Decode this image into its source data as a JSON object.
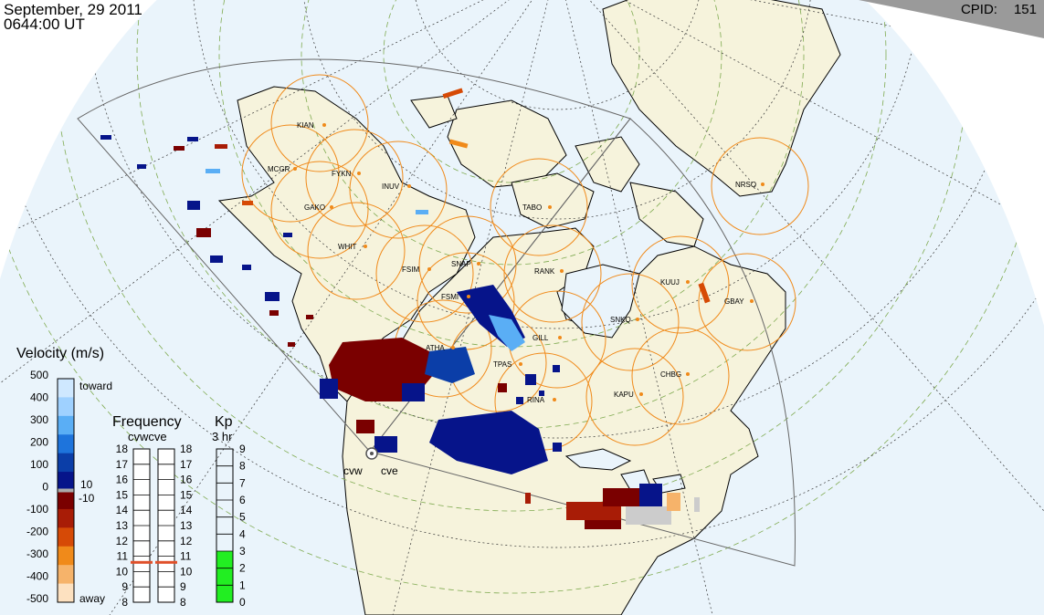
{
  "header": {
    "date": "September, 29 2011",
    "time": "0644:00 UT",
    "cpid_label": "CPID:",
    "cpid_value": "151"
  },
  "radar_sites": [
    "KIAN",
    "MCGR",
    "FYKN",
    "INUV",
    "GAKO",
    "WHIT",
    "TABO",
    "NRSQ",
    "FSIM",
    "SNAP",
    "RANK",
    "FSMI",
    "KUUJ",
    "GBAY",
    "SNKQ",
    "GILL",
    "ATHA",
    "TPAS",
    "CHBG",
    "KAPU",
    "RINA"
  ],
  "active_radars": {
    "west": "cvw",
    "east": "cve"
  },
  "velocity_scale": {
    "title": "Velocity (m/s)",
    "ticks": [
      "500",
      "400",
      "300",
      "200",
      "100",
      "0",
      "-100",
      "-200",
      "-300",
      "-400",
      "-500"
    ],
    "toward_label": "toward",
    "away_label": "away",
    "pos_threshold": "10",
    "neg_threshold": "-10",
    "colors": [
      "#cfe8ff",
      "#9fd1ff",
      "#5aaef5",
      "#1e74dc",
      "#0b3ea8",
      "#06148a",
      "#7a0000",
      "#a81c06",
      "#d64a06",
      "#f08a1a",
      "#f6b36a",
      "#fde1c0"
    ]
  },
  "frequency_panel": {
    "title": "Frequency",
    "subtitle": "cvwcve",
    "left_ticks": [
      "18",
      "17",
      "16",
      "15",
      "14",
      "13",
      "12",
      "11",
      "10",
      "9",
      "8"
    ],
    "right_ticks": [
      "18",
      "17",
      "16",
      "15",
      "14",
      "13",
      "12",
      "11",
      "10",
      "9",
      "8"
    ],
    "cvw_mhz": 10.6,
    "cve_mhz": 10.6,
    "marker_color": "#e0502a"
  },
  "kp_panel": {
    "title": "Kp",
    "subtitle": "3 hr",
    "ticks": [
      "9",
      "8",
      "7",
      "6",
      "5",
      "4",
      "3",
      "2",
      "1",
      "0"
    ],
    "value": 3,
    "fill_color": "#22ee22"
  },
  "colors": {
    "ocean": "#eaf4fb",
    "land": "#f6f3dc",
    "circle": "#f08a1a",
    "grid": "#4a4a4a",
    "fov": "#666666"
  }
}
